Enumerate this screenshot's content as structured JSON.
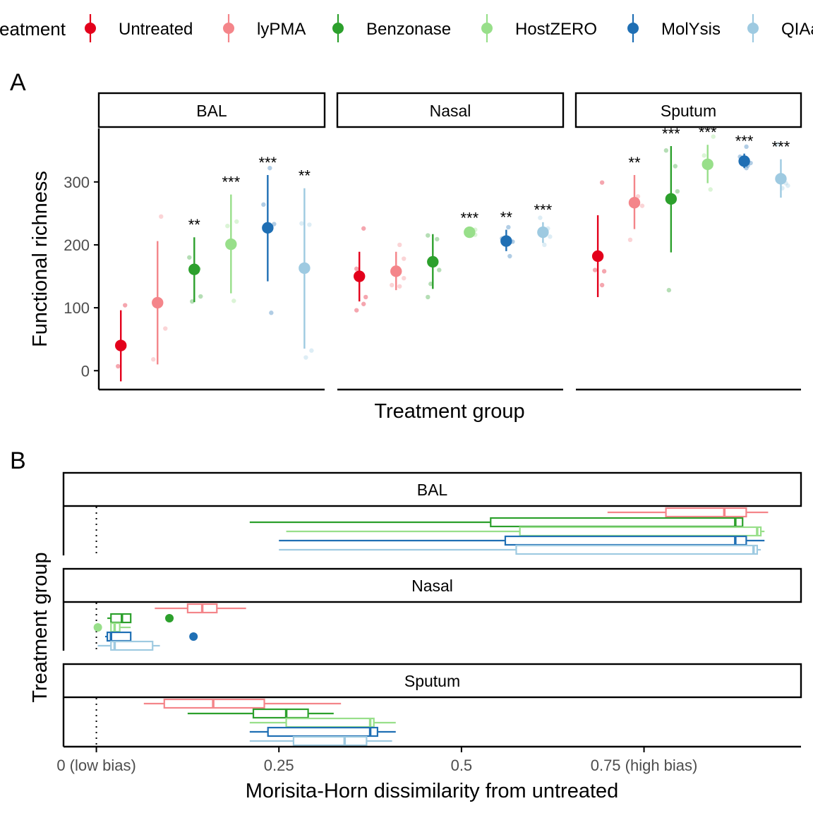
{
  "colors": {
    "Untreated": "#e3001b",
    "lyPMA": "#f4858a",
    "Benzonase": "#2ca02c",
    "HostZERO": "#98df8a",
    "MolYsis": "#1f6fb4",
    "QIAamp": "#9ecae1"
  },
  "legend": {
    "title": "Treatment",
    "items": [
      "Untreated",
      "lyPMA",
      "Benzonase",
      "HostZERO",
      "MolYsis",
      "QIAamp"
    ]
  },
  "panel_a": {
    "tag": "A",
    "chart_data": {
      "type": "scatter",
      "xlabel": "Treatment group",
      "ylabel": "Functional richness",
      "yticks": [
        0,
        100,
        200,
        300
      ],
      "ylim": [
        -30,
        385
      ],
      "facets": [
        {
          "name": "BAL",
          "groups": [
            {
              "treatment": "Untreated",
              "mean": 40,
              "lo": -17,
              "hi": 96,
              "sig": "",
              "points": [
                104,
                7
              ]
            },
            {
              "treatment": "lyPMA",
              "mean": 108,
              "lo": 10,
              "hi": 206,
              "sig": "",
              "points": [
                245,
                67,
                18
              ]
            },
            {
              "treatment": "Benzonase",
              "mean": 161,
              "lo": 109,
              "hi": 212,
              "sig": "**",
              "points": [
                180,
                162,
                118,
                110
              ]
            },
            {
              "treatment": "HostZERO",
              "mean": 201,
              "lo": 123,
              "hi": 280,
              "sig": "***",
              "points": [
                237,
                230,
                111
              ]
            },
            {
              "treatment": "MolYsis",
              "mean": 227,
              "lo": 142,
              "hi": 311,
              "sig": "***",
              "points": [
                322,
                264,
                233,
                92
              ]
            },
            {
              "treatment": "QIAamp",
              "mean": 163,
              "lo": 35,
              "hi": 290,
              "sig": "**",
              "points": [
                234,
                232,
                32,
                21
              ]
            }
          ]
        },
        {
          "name": "Nasal",
          "groups": [
            {
              "treatment": "Untreated",
              "mean": 150,
              "lo": 110,
              "hi": 189,
              "sig": "",
              "points": [
                226,
                162,
                117,
                106,
                96
              ]
            },
            {
              "treatment": "lyPMA",
              "mean": 158,
              "lo": 128,
              "hi": 189,
              "sig": "",
              "points": [
                200,
                178,
                136,
                134,
                147
              ]
            },
            {
              "treatment": "Benzonase",
              "mean": 173,
              "lo": 130,
              "hi": 217,
              "sig": "",
              "points": [
                215,
                209,
                160,
                138,
                117
              ]
            },
            {
              "treatment": "HostZERO",
              "mean": 220,
              "lo": 217,
              "hi": 223,
              "sig": "***",
              "points": [
                224,
                221,
                218,
                216
              ]
            },
            {
              "treatment": "MolYsis",
              "mean": 206,
              "lo": 190,
              "hi": 224,
              "sig": "**",
              "points": [
                228,
                210,
                205,
                182
              ]
            },
            {
              "treatment": "QIAamp",
              "mean": 220,
              "lo": 203,
              "hi": 236,
              "sig": "***",
              "points": [
                243,
                226,
                213,
                200
              ]
            }
          ]
        },
        {
          "name": "Sputum",
          "groups": [
            {
              "treatment": "Untreated",
              "mean": 182,
              "lo": 117,
              "hi": 247,
              "sig": "",
              "points": [
                299,
                160,
                158,
                136
              ]
            },
            {
              "treatment": "lyPMA",
              "mean": 267,
              "lo": 225,
              "hi": 311,
              "sig": "**",
              "points": [
                277,
                262,
                208
              ]
            },
            {
              "treatment": "Benzonase",
              "mean": 273,
              "lo": 188,
              "hi": 357,
              "sig": "***",
              "points": [
                350,
                325,
                285,
                128
              ]
            },
            {
              "treatment": "HostZERO",
              "mean": 328,
              "lo": 298,
              "hi": 359,
              "sig": "***",
              "points": [
                372,
                342,
                288
              ]
            },
            {
              "treatment": "MolYsis",
              "mean": 333,
              "lo": 322,
              "hi": 345,
              "sig": "***",
              "points": [
                356,
                340,
                330,
                326,
                322
              ]
            },
            {
              "treatment": "QIAamp",
              "mean": 305,
              "lo": 275,
              "hi": 336,
              "sig": "***",
              "points": [
                360,
                298,
                294,
                290
              ]
            }
          ]
        }
      ]
    }
  },
  "panel_b": {
    "tag": "B",
    "chart_data": {
      "type": "boxplot",
      "xlabel": "Morisita-Horn dissimilarity from untreated",
      "ylabel": "Treatment group",
      "xlim": [
        -0.045,
        0.965
      ],
      "xticks": [
        {
          "value": 0,
          "label": "0 (low bias)"
        },
        {
          "value": 0.25,
          "label": "0.25"
        },
        {
          "value": 0.5,
          "label": "0.5"
        },
        {
          "value": 0.75,
          "label": "0.75 (high bias)"
        }
      ],
      "reference_line": 0,
      "facets": [
        {
          "name": "BAL",
          "boxes": [
            {
              "treatment": "lyPMA",
              "wmin": 0.7,
              "q1": 0.78,
              "median": 0.86,
              "q3": 0.89,
              "wmax": 0.92,
              "outliers": []
            },
            {
              "treatment": "Benzonase",
              "wmin": 0.21,
              "q1": 0.54,
              "median": 0.875,
              "q3": 0.885,
              "wmax": 0.885,
              "outliers": []
            },
            {
              "treatment": "HostZERO",
              "wmin": 0.26,
              "q1": 0.58,
              "median": 0.905,
              "q3": 0.91,
              "wmax": 0.915,
              "outliers": []
            },
            {
              "treatment": "MolYsis",
              "wmin": 0.25,
              "q1": 0.56,
              "median": 0.875,
              "q3": 0.89,
              "wmax": 0.915,
              "outliers": []
            },
            {
              "treatment": "QIAamp",
              "wmin": 0.25,
              "q1": 0.575,
              "median": 0.9,
              "q3": 0.905,
              "wmax": 0.91,
              "outliers": []
            }
          ]
        },
        {
          "name": "Nasal",
          "boxes": [
            {
              "treatment": "lyPMA",
              "wmin": 0.08,
              "q1": 0.125,
              "median": 0.145,
              "q3": 0.165,
              "wmax": 0.205,
              "outliers": []
            },
            {
              "treatment": "Benzonase",
              "wmin": 0.015,
              "q1": 0.02,
              "median": 0.035,
              "q3": 0.047,
              "wmax": 0.047,
              "outliers": [
                0.1
              ]
            },
            {
              "treatment": "HostZERO",
              "wmin": 0.02,
              "q1": 0.02,
              "median": 0.025,
              "q3": 0.032,
              "wmax": 0.047,
              "outliers": [
                0.002
              ]
            },
            {
              "treatment": "MolYsis",
              "wmin": 0.012,
              "q1": 0.015,
              "median": 0.02,
              "q3": 0.047,
              "wmax": 0.047,
              "outliers": [
                0.133
              ]
            },
            {
              "treatment": "QIAamp",
              "wmin": 0.002,
              "q1": 0.02,
              "median": 0.025,
              "q3": 0.077,
              "wmax": 0.087,
              "outliers": []
            }
          ]
        },
        {
          "name": "Sputum",
          "boxes": [
            {
              "treatment": "lyPMA",
              "wmin": 0.065,
              "q1": 0.093,
              "median": 0.16,
              "q3": 0.23,
              "wmax": 0.335,
              "outliers": []
            },
            {
              "treatment": "Benzonase",
              "wmin": 0.125,
              "q1": 0.215,
              "median": 0.26,
              "q3": 0.29,
              "wmax": 0.325,
              "outliers": []
            },
            {
              "treatment": "HostZERO",
              "wmin": 0.21,
              "q1": 0.26,
              "median": 0.375,
              "q3": 0.38,
              "wmax": 0.41,
              "outliers": []
            },
            {
              "treatment": "MolYsis",
              "wmin": 0.21,
              "q1": 0.235,
              "median": 0.375,
              "q3": 0.385,
              "wmax": 0.41,
              "outliers": []
            },
            {
              "treatment": "QIAamp",
              "wmin": 0.21,
              "q1": 0.27,
              "median": 0.34,
              "q3": 0.37,
              "wmax": 0.405,
              "outliers": []
            }
          ]
        }
      ]
    }
  }
}
